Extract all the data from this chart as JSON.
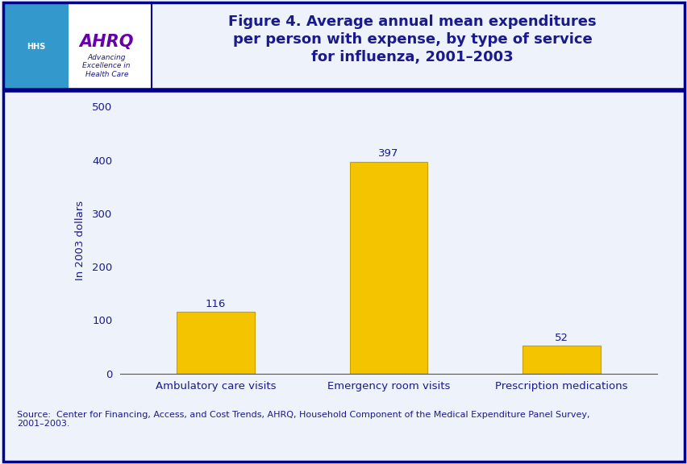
{
  "categories": [
    "Ambulatory care visits",
    "Emergency room visits",
    "Prescription medications"
  ],
  "values": [
    116,
    397,
    52
  ],
  "bar_color": "#F5C400",
  "bar_edgecolor": "#C8A000",
  "title_line1": "Figure 4. Average annual mean expenditures",
  "title_line2": "per person with expense, by type of service",
  "title_line3": "for influenza, 2001–2003",
  "title_color": "#1a1a8c",
  "ylabel": "In 2003 dollars",
  "ylabel_color": "#1a1a8c",
  "ytick_color": "#1a1a8c",
  "xtick_color": "#1a1a8c",
  "ylim": [
    0,
    500
  ],
  "yticks": [
    0,
    100,
    200,
    300,
    400,
    500
  ],
  "value_label_color": "#1a1a8c",
  "background_color": "#eef2fb",
  "plot_bg_color": "#eef2fb",
  "border_color": "#00008B",
  "header_line_color": "#00008B",
  "source_text": "Source:  Center for Financing, Access, and Cost Trends, AHRQ, Household Component of the Medical Expenditure Panel Survey,\n2001–2003.",
  "source_color": "#1a1a8c",
  "title_fontsize": 13,
  "axis_label_fontsize": 9.5,
  "value_fontsize": 9.5,
  "source_fontsize": 8,
  "bar_width": 0.45,
  "logo_bg_color": "#ffffff",
  "hhs_bg_color": "#3399cc",
  "ahrq_text_color": "#6600aa",
  "ahrq_sub_color": "#1a1a8c"
}
